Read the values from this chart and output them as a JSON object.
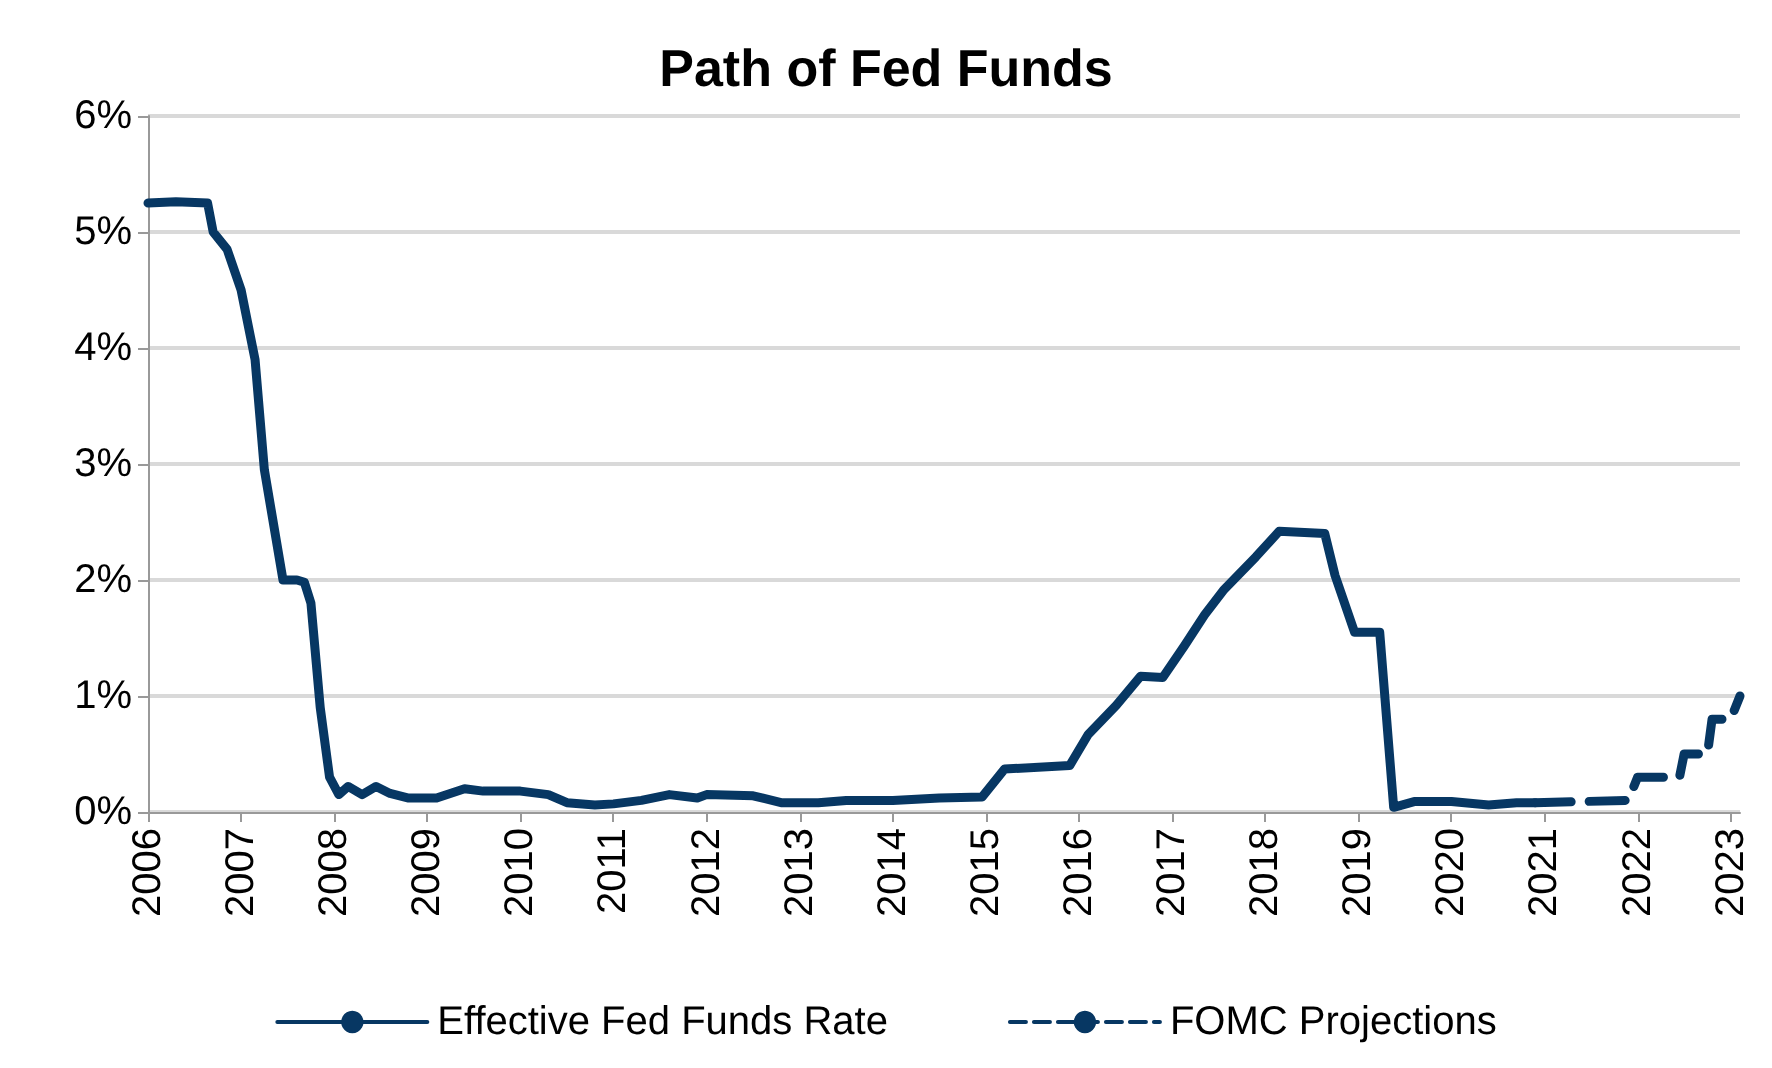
{
  "chart_data": {
    "type": "line",
    "title": "Path of Fed Funds",
    "xlim": [
      2006,
      2023.1
    ],
    "xticks": [
      2006,
      2007,
      2008,
      2009,
      2010,
      2011,
      2012,
      2013,
      2014,
      2015,
      2016,
      2017,
      2018,
      2019,
      2020,
      2021,
      2022,
      2023
    ],
    "ylim": [
      0,
      6
    ],
    "yticks": [
      {
        "value": 0,
        "label": "0%"
      },
      {
        "value": 1,
        "label": "1%"
      },
      {
        "value": 2,
        "label": "2%"
      },
      {
        "value": 3,
        "label": "3%"
      },
      {
        "value": 4,
        "label": "4%"
      },
      {
        "value": 5,
        "label": "5%"
      },
      {
        "value": 6,
        "label": "6%"
      }
    ],
    "grid": "y",
    "legend": "bottom",
    "marker": "none",
    "series": [
      {
        "name": "Effective Fed Funds Rate",
        "color": "#073763",
        "line_style": "solid",
        "x": [
          2006.0,
          2006.3,
          2006.64,
          2006.7,
          2006.85,
          2007.0,
          2007.15,
          2007.25,
          2007.45,
          2007.6,
          2007.68,
          2007.75,
          2007.85,
          2007.95,
          2008.05,
          2008.15,
          2008.3,
          2008.45,
          2008.6,
          2008.8,
          2009.1,
          2009.4,
          2009.6,
          2010.0,
          2010.3,
          2010.5,
          2010.8,
          2011.0,
          2011.3,
          2011.6,
          2011.9,
          2012.0,
          2012.5,
          2012.8,
          2013.2,
          2013.5,
          2014.0,
          2014.5,
          2014.96,
          2015.2,
          2015.9,
          2016.1,
          2016.4,
          2016.66,
          2016.9,
          2017.13,
          2017.35,
          2017.55,
          2017.9,
          2018.15,
          2018.64,
          2018.75,
          2018.96,
          2019.23,
          2019.38,
          2019.6,
          2020.0,
          2020.4,
          2020.7,
          2020.9
        ],
        "values": [
          5.25,
          5.26,
          5.25,
          5.0,
          4.85,
          4.5,
          3.9,
          2.95,
          2.0,
          2.0,
          1.98,
          1.8,
          0.9,
          0.3,
          0.15,
          0.22,
          0.15,
          0.22,
          0.16,
          0.12,
          0.12,
          0.2,
          0.18,
          0.18,
          0.15,
          0.08,
          0.06,
          0.07,
          0.1,
          0.15,
          0.12,
          0.15,
          0.14,
          0.08,
          0.08,
          0.1,
          0.1,
          0.12,
          0.13,
          0.37,
          0.4,
          0.67,
          0.92,
          1.17,
          1.16,
          1.43,
          1.7,
          1.91,
          2.2,
          2.42,
          2.4,
          2.04,
          1.55,
          1.55,
          0.04,
          0.09,
          0.09,
          0.06,
          0.08,
          0.08
        ]
      },
      {
        "name": "FOMC Projections",
        "color": "#073763",
        "line_style": "dashed",
        "x": [
          2020.9,
          2021.9,
          2022.0,
          2022.45,
          2022.5,
          2022.75,
          2022.8,
          2023.0,
          2023.1
        ],
        "values": [
          0.08,
          0.1,
          0.3,
          0.3,
          0.5,
          0.5,
          0.8,
          0.8,
          1.0
        ]
      }
    ]
  }
}
